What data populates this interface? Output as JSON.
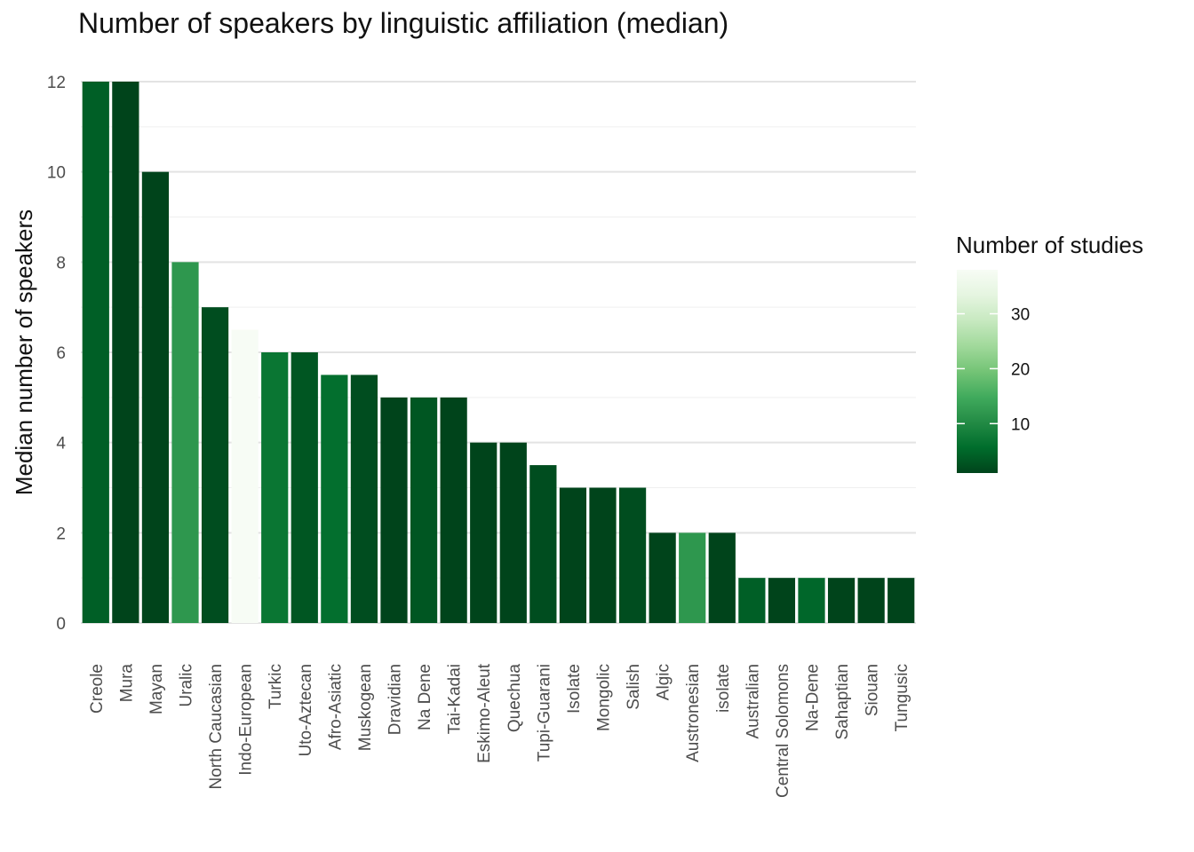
{
  "chart_data": {
    "type": "bar",
    "title": "Number of speakers by linguistic affiliation (median)",
    "xlabel": "",
    "ylabel": "Median number of speakers",
    "ylim": [
      0,
      12
    ],
    "yticks": [
      0,
      2,
      4,
      6,
      8,
      10,
      12
    ],
    "grid": true,
    "legend": {
      "title": "Number of studies",
      "position": "right",
      "range": [
        1,
        38
      ],
      "ticks": [
        10,
        20,
        30
      ],
      "colors": [
        "#00441b",
        "#006d2c",
        "#238b45",
        "#41ab5d",
        "#74c476",
        "#a1d99b",
        "#c7e9c0",
        "#e5f5e0",
        "#f7fcf5"
      ]
    },
    "categories": [
      "Creole",
      "Mura",
      "Mayan",
      "Uralic",
      "North Caucasian",
      "Indo-European",
      "Turkic",
      "Uto-Aztecan",
      "Afro-Asiatic",
      "Muskogean",
      "Dravidian",
      "Na Dene",
      "Tai-Kadai",
      "Eskimo-Aleut",
      "Quechua",
      "Tupi-Guarani",
      "Isolate",
      "Mongolic",
      "Salish",
      "Algic",
      "Austronesian",
      "isolate",
      "Australian",
      "Central Solomons",
      "Na-Dene",
      "Sahaptian",
      "Siouan",
      "Tungusic"
    ],
    "values": [
      12,
      12,
      10,
      8,
      7,
      6.5,
      6,
      6,
      5.5,
      5.5,
      5,
      5,
      5,
      4,
      4,
      3.5,
      3,
      3,
      3,
      2,
      2,
      2,
      1,
      1,
      1,
      1,
      1,
      1
    ],
    "studies": [
      4,
      1,
      1,
      12,
      2,
      38,
      7,
      3,
      6,
      2,
      1,
      3,
      1,
      1,
      1,
      2,
      1,
      1,
      2,
      1,
      12,
      1,
      4,
      1,
      5,
      1,
      1,
      1
    ]
  }
}
